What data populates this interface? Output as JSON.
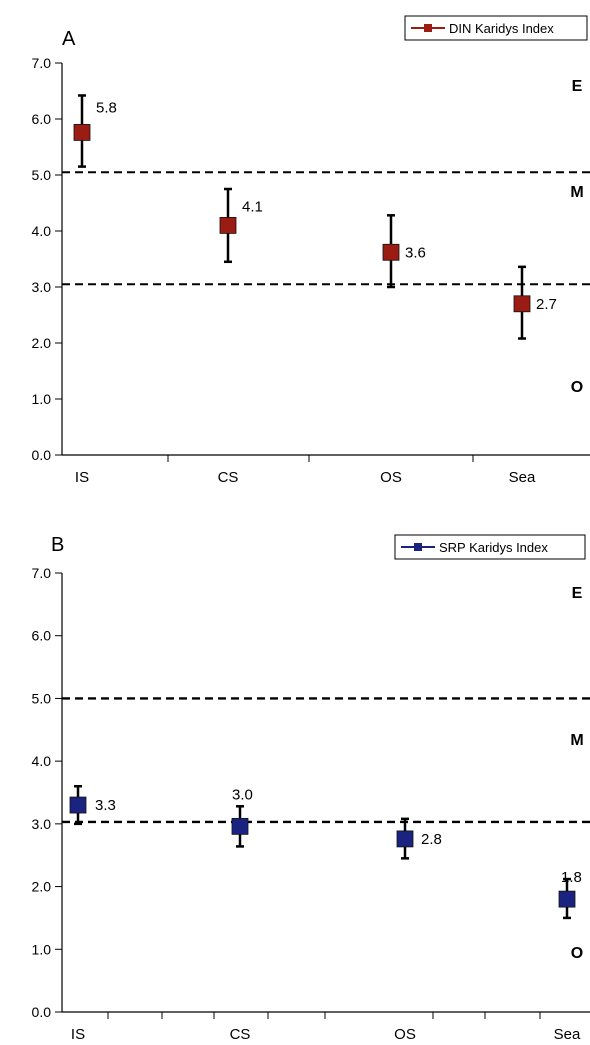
{
  "chart_data": [
    {
      "type": "scatter",
      "panel_label": "A",
      "categories": [
        "IS",
        "CS",
        "OS",
        "Sea"
      ],
      "series": [
        {
          "name": "DIN Karidys Index",
          "color": "#9b1c12",
          "values": [
            5.76,
            4.1,
            3.62,
            2.7
          ],
          "value_labels": [
            "5.8",
            "4.1",
            "3.6",
            "2.7"
          ],
          "error_low": [
            5.15,
            3.45,
            3.0,
            2.08
          ],
          "error_high": [
            6.42,
            4.75,
            4.28,
            3.36
          ]
        }
      ],
      "ylim": [
        0,
        7
      ],
      "yticks": [
        "0.0",
        "1.0",
        "2.0",
        "3.0",
        "4.0",
        "5.0",
        "6.0",
        "7.0"
      ],
      "thresholds": [
        5.05,
        3.05
      ],
      "zone_labels": [
        "E",
        "M",
        "O"
      ],
      "legend_position": "top-right",
      "grid": false
    },
    {
      "type": "scatter",
      "panel_label": "B",
      "categories": [
        "IS",
        "CS",
        "OS",
        "Sea"
      ],
      "series": [
        {
          "name": "SRP Karidys Index",
          "color": "#1a2480",
          "values": [
            3.3,
            2.96,
            2.76,
            1.8
          ],
          "value_labels": [
            "3.3",
            "3.0",
            "2.8",
            "1.8"
          ],
          "error_low": [
            3.0,
            2.64,
            2.45,
            1.5
          ],
          "error_high": [
            3.6,
            3.28,
            3.08,
            2.12
          ]
        }
      ],
      "ylim": [
        0,
        7
      ],
      "yticks": [
        "0.0",
        "1.0",
        "2.0",
        "3.0",
        "4.0",
        "5.0",
        "6.0",
        "7.0"
      ],
      "thresholds": [
        5.0,
        3.03
      ],
      "zone_labels": [
        "E",
        "M",
        "O"
      ],
      "legend_position": "top-right",
      "grid": false
    }
  ]
}
